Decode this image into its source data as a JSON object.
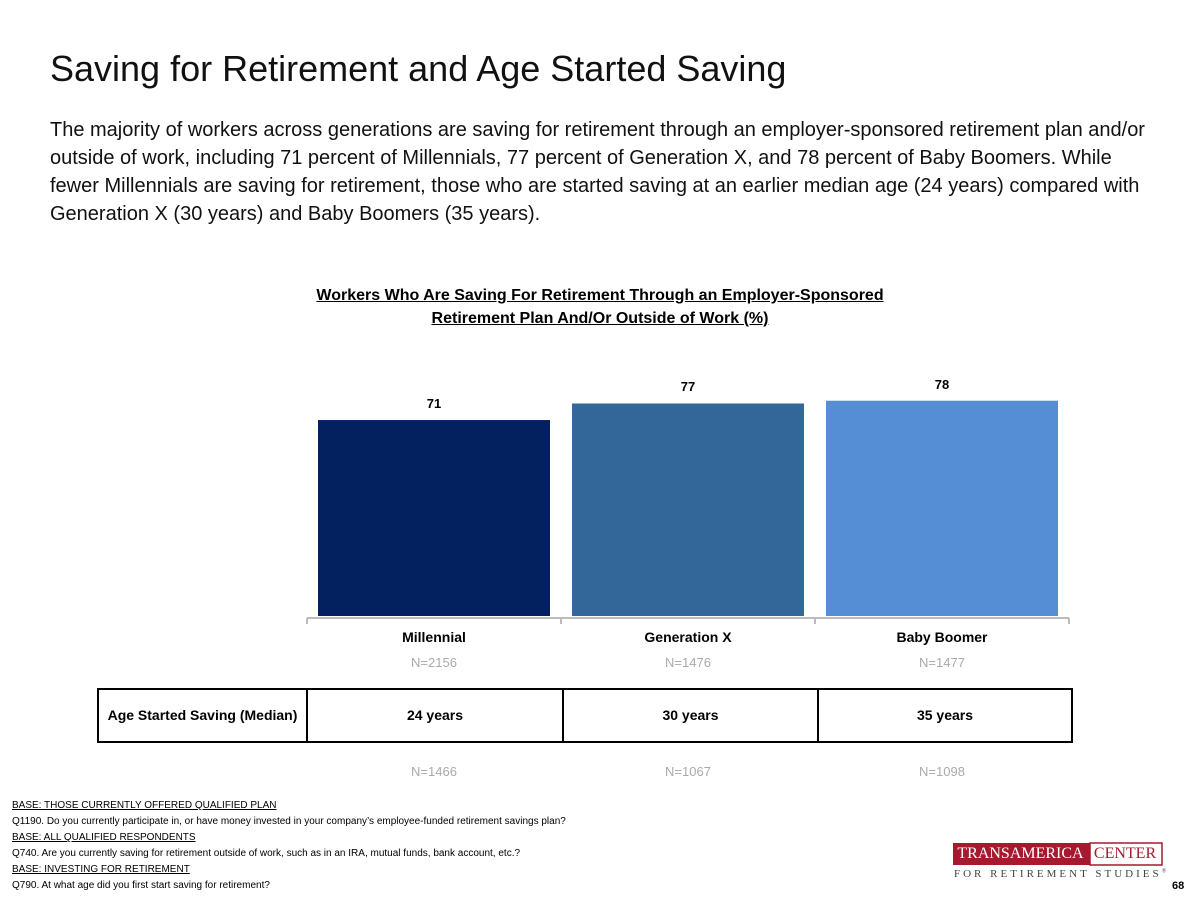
{
  "title": "Saving for Retirement and Age Started Saving",
  "body": "The majority of workers across generations are saving for retirement through an employer-sponsored retirement plan and/or outside of work, including 71 percent of Millennials, 77 percent of Generation X, and 78 percent of Baby Boomers. While fewer Millennials are saving for retirement, those who are started saving at an earlier median age (24 years) compared with Generation X (30 years) and Baby Boomers (35 years).",
  "chart_data": {
    "type": "bar",
    "title": "Workers Who Are Saving For Retirement Through an Employer-Sponsored Retirement Plan And/Or Outside of Work (%)",
    "categories": [
      "Millennial",
      "Generation X",
      "Baby Boomer"
    ],
    "category_notes": [
      "N=2156",
      "N=1476",
      "N=1477"
    ],
    "values": [
      71,
      77,
      78
    ],
    "colors": [
      "#03215f",
      "#336699",
      "#558ed5"
    ]
  },
  "table": {
    "header": "Age Started Saving (Median)",
    "cells": [
      "24 years",
      "30 years",
      "35 years"
    ],
    "notes": [
      "N=1466",
      "N=1067",
      "N=1098"
    ]
  },
  "footnotes": [
    {
      "text": "BASE: THOSE CURRENTLY OFFERED QUALIFIED PLAN",
      "underline": true
    },
    {
      "text": "Q1190. Do you currently participate in, or have money invested in your company’s employee-funded retirement savings plan?",
      "underline": false
    },
    {
      "text": "BASE: ALL QUALIFIED RESPONDENTS",
      "underline": true
    },
    {
      "text": "Q740. Are you currently saving for retirement outside of work, such as in an IRA, mutual funds, bank account, etc.?",
      "underline": false
    },
    {
      "text": "BASE: INVESTING FOR RETIREMENT",
      "underline": true
    },
    {
      "text": "Q790. At what age did you first start saving for retirement?",
      "underline": false
    }
  ],
  "logo": {
    "name": "TRANSAMERICA",
    "suffix": "CENTER",
    "tagline": "FOR RETIREMENT STUDIES",
    "mark": "®"
  },
  "page_number": "68"
}
